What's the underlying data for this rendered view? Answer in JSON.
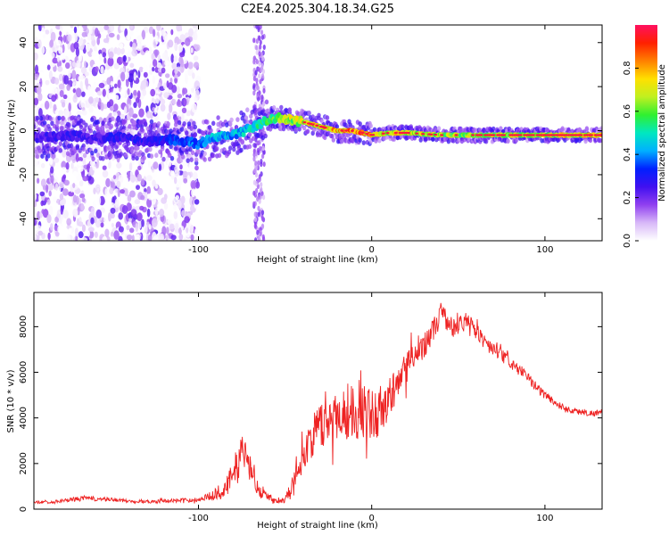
{
  "chart_data": [
    {
      "type": "heatmap",
      "title": "C2E4.2025.304.18.34.G25",
      "xlabel": "Height of straight line (km)",
      "ylabel": "Frequency (Hz)",
      "xlim": [
        -195,
        133
      ],
      "ylim": [
        -50,
        48
      ],
      "xticks": [
        -100,
        0,
        100
      ],
      "yticks": [
        -40,
        -20,
        0,
        20,
        40
      ],
      "colorbar": {
        "label": "Normalized spectral amplitude",
        "range": [
          0,
          1
        ],
        "ticks": [
          "0.0",
          "0.2",
          "0.4",
          "0.6",
          "0.8"
        ],
        "colors": [
          "#ffffff",
          "#d8b8f8",
          "#9040f0",
          "#4010f0",
          "#0020ff",
          "#00b0ff",
          "#00e8c0",
          "#30f030",
          "#c0f020",
          "#ffe000",
          "#ff8000",
          "#ff2000",
          "#ff1060"
        ]
      },
      "ridge": {
        "x": [
          -190,
          -175,
          -160,
          -145,
          -130,
          -115,
          -100,
          -90,
          -80,
          -70,
          -62,
          -55,
          -48,
          -40,
          -30,
          -20,
          -12,
          -5,
          0,
          10,
          20,
          40,
          60,
          80,
          100,
          120,
          133
        ],
        "y": [
          -3,
          -2,
          -4,
          -3,
          -5,
          -4,
          -6,
          -3,
          -2,
          1,
          4,
          6,
          5,
          4,
          2,
          0,
          0,
          -1,
          -2,
          -1,
          -1,
          -2,
          -2,
          -2,
          -2,
          -2,
          -2
        ],
        "amplitude": [
          0.25,
          0.28,
          0.25,
          0.3,
          0.28,
          0.35,
          0.4,
          0.45,
          0.45,
          0.5,
          0.55,
          0.65,
          0.7,
          0.72,
          0.78,
          0.82,
          0.85,
          0.88,
          0.8,
          0.75,
          0.72,
          0.7,
          0.68,
          0.7,
          0.72,
          0.75,
          0.78
        ]
      }
    },
    {
      "type": "line",
      "xlabel": "Height of straight line (km)",
      "ylabel": "SNR (10 * v/v)",
      "xlim": [
        -195,
        133
      ],
      "ylim": [
        0,
        9500
      ],
      "xticks": [
        -100,
        0,
        100
      ],
      "yticks": [
        0,
        2000,
        4000,
        6000,
        8000
      ],
      "color": "#ee2222",
      "series": [
        {
          "name": "SNR",
          "x": [
            -195,
            -185,
            -175,
            -165,
            -160,
            -150,
            -140,
            -130,
            -120,
            -110,
            -100,
            -92,
            -85,
            -80,
            -77,
            -74,
            -71,
            -68,
            -65,
            -60,
            -55,
            -50,
            -45,
            -40,
            -35,
            -30,
            -25,
            -20,
            -15,
            -10,
            -5,
            0,
            5,
            10,
            15,
            20,
            25,
            30,
            35,
            38,
            40,
            43,
            47,
            52,
            57,
            62,
            67,
            72,
            77,
            82,
            87,
            92,
            97,
            102,
            107,
            112,
            117,
            122,
            127,
            133
          ],
          "y": [
            300,
            320,
            400,
            480,
            450,
            420,
            350,
            330,
            360,
            380,
            420,
            600,
            900,
            1400,
            2100,
            2600,
            2000,
            1500,
            900,
            550,
            400,
            420,
            1200,
            2300,
            3100,
            3600,
            3900,
            4100,
            4300,
            4400,
            4300,
            4100,
            4400,
            4800,
            5500,
            6200,
            6800,
            7200,
            7800,
            8200,
            8700,
            8300,
            7900,
            8200,
            8100,
            7700,
            7200,
            6900,
            6600,
            6300,
            6000,
            5600,
            5200,
            4900,
            4600,
            4400,
            4300,
            4250,
            4200,
            4250
          ],
          "amplitude": [
            60,
            60,
            80,
            120,
            100,
            80,
            70,
            70,
            80,
            90,
            100,
            200,
            400,
            700,
            900,
            900,
            800,
            600,
            350,
            150,
            120,
            150,
            400,
            700,
            900,
            1000,
            1100,
            1200,
            1300,
            1350,
            1300,
            1200,
            1100,
            1000,
            900,
            800,
            700,
            600,
            500,
            500,
            500,
            450,
            450,
            400,
            400,
            350,
            300,
            300,
            280,
            260,
            240,
            220,
            200,
            200,
            180,
            160,
            150,
            140,
            140,
            140
          ]
        }
      ]
    }
  ]
}
